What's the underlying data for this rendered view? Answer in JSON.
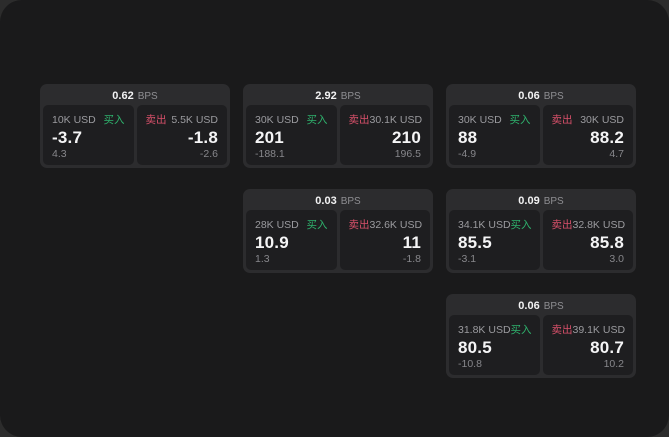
{
  "labels": {
    "bps_unit": "BPS",
    "buy": "买入",
    "sell": "卖出"
  },
  "colors": {
    "buy_green": "#2fb26d",
    "sell_red": "#d8506a",
    "window_bg": "#1a1a1b",
    "card_bg": "#2c2c2e",
    "pane_bg": "#1e1e20"
  },
  "cards": [
    {
      "grid": {
        "row": 1,
        "col": 1
      },
      "bps": "0.62",
      "buy": {
        "notional": "10K USD",
        "price": "-3.7",
        "delta": "4.3"
      },
      "sell": {
        "notional": "5.5K USD",
        "price": "-1.8",
        "delta": "-2.6"
      }
    },
    {
      "grid": {
        "row": 1,
        "col": 2
      },
      "bps": "2.92",
      "buy": {
        "notional": "30K USD",
        "price": "201",
        "delta": "-188.1"
      },
      "sell": {
        "notional": "30.1K USD",
        "price": "210",
        "delta": "196.5"
      }
    },
    {
      "grid": {
        "row": 1,
        "col": 3
      },
      "bps": "0.06",
      "buy": {
        "notional": "30K USD",
        "price": "88",
        "delta": "-4.9"
      },
      "sell": {
        "notional": "30K USD",
        "price": "88.2",
        "delta": "4.7"
      }
    },
    {
      "grid": {
        "row": 2,
        "col": 2
      },
      "bps": "0.03",
      "buy": {
        "notional": "28K USD",
        "price": "10.9",
        "delta": "1.3"
      },
      "sell": {
        "notional": "32.6K USD",
        "price": "11",
        "delta": "-1.8"
      }
    },
    {
      "grid": {
        "row": 2,
        "col": 3
      },
      "bps": "0.09",
      "buy": {
        "notional": "34.1K USD",
        "price": "85.5",
        "delta": "-3.1"
      },
      "sell": {
        "notional": "32.8K USD",
        "price": "85.8",
        "delta": "3.0"
      }
    },
    {
      "grid": {
        "row": 3,
        "col": 3
      },
      "bps": "0.06",
      "buy": {
        "notional": "31.8K USD",
        "price": "80.5",
        "delta": "-10.8"
      },
      "sell": {
        "notional": "39.1K USD",
        "price": "80.7",
        "delta": "10.2"
      }
    }
  ]
}
